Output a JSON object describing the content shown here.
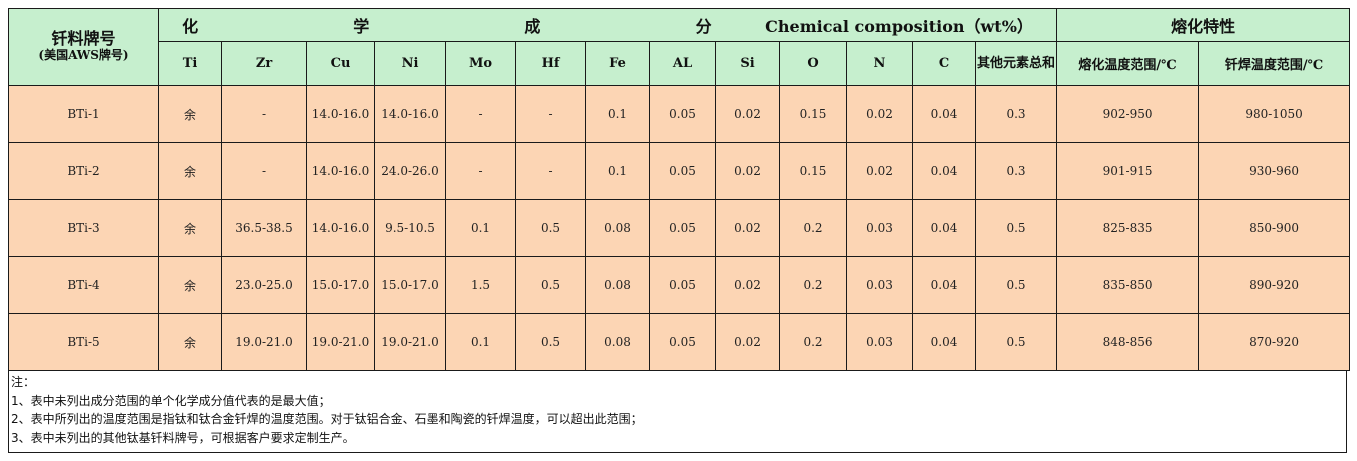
{
  "header": {
    "brand_title": "钎料牌号",
    "brand_sub": "(美国AWS牌号)",
    "chem_title_zh": "化  学  成  分",
    "chem_title_en": "Chemical composition（wt%）",
    "melt_title": "熔化特性",
    "columns": [
      "Ti",
      "Zr",
      "Cu",
      "Ni",
      "Mo",
      "Hf",
      "Fe",
      "AL",
      "Si",
      "O",
      "N",
      "C",
      "其他元素总和"
    ],
    "melt_columns": [
      "熔化温度范围/℃",
      "钎焊温度范围/℃"
    ]
  },
  "rows": [
    {
      "cells": [
        "BTi-1",
        "余",
        "-",
        "14.0-16.0",
        "14.0-16.0",
        "-",
        "-",
        "0.1",
        "0.05",
        "0.02",
        "0.15",
        "0.02",
        "0.04",
        "0.3",
        "902-950",
        "980-1050"
      ]
    },
    {
      "cells": [
        "BTi-2",
        "余",
        "-",
        "14.0-16.0",
        "24.0-26.0",
        "-",
        "-",
        "0.1",
        "0.05",
        "0.02",
        "0.15",
        "0.02",
        "0.04",
        "0.3",
        "901-915",
        "930-960"
      ]
    },
    {
      "cells": [
        "BTi-3",
        "余",
        "36.5-38.5",
        "14.0-16.0",
        "9.5-10.5",
        "0.1",
        "0.5",
        "0.08",
        "0.05",
        "0.02",
        "0.2",
        "0.03",
        "0.04",
        "0.5",
        "825-835",
        "850-900"
      ]
    },
    {
      "cells": [
        "BTi-4",
        "余",
        "23.0-25.0",
        "15.0-17.0",
        "15.0-17.0",
        "1.5",
        "0.5",
        "0.08",
        "0.05",
        "0.02",
        "0.2",
        "0.03",
        "0.04",
        "0.5",
        "835-850",
        "890-920"
      ]
    },
    {
      "cells": [
        "BTi-5",
        "余",
        "19.0-21.0",
        "19.0-21.0",
        "19.0-21.0",
        "0.1",
        "0.5",
        "0.08",
        "0.05",
        "0.02",
        "0.2",
        "0.03",
        "0.04",
        "0.5",
        "848-856",
        "870-920"
      ]
    }
  ],
  "notes": [
    "注：",
    "1、表中未列出成分范围的单个化学成分值代表的是最大值；",
    "2、表中所列出的温度范围是指钛和钛合金钎焊的温度范围。对于钛铝合金、石墨和陶瓷的钎焊温度，可以超出此范围；",
    "3、表中未列出的其他钛基钎料牌号，可根据客户要求定制生产。"
  ]
}
